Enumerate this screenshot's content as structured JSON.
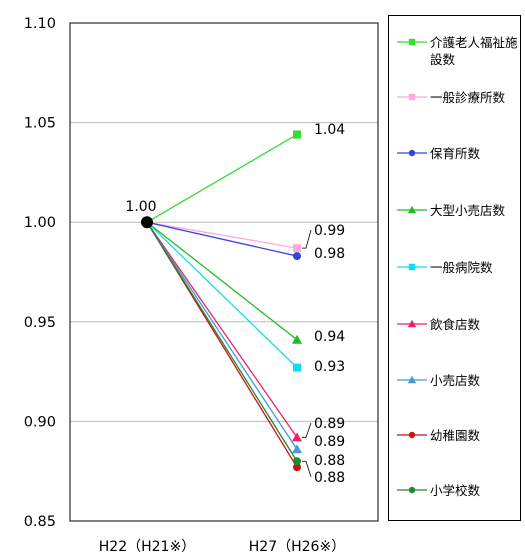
{
  "chart_data": {
    "type": "line",
    "x": [
      "H22（H21※）",
      "H27（H26※）"
    ],
    "ylim": [
      0.85,
      1.1
    ],
    "yticks": [
      "0.85",
      "0.90",
      "0.95",
      "1.00",
      "1.05",
      "1.10"
    ],
    "grid": true,
    "legend_position": "right",
    "start_label": "1.00",
    "series": [
      {
        "name": "介護老人福祉施設数",
        "values": [
          1.0,
          1.044
        ],
        "label": "1.04",
        "color": "#33dd33",
        "marker": "square"
      },
      {
        "name": "一般診療所数",
        "values": [
          1.0,
          0.987
        ],
        "label": "0.99",
        "color": "#ffaadd",
        "marker": "square"
      },
      {
        "name": "保育所数",
        "values": [
          1.0,
          0.983
        ],
        "label": "0.98",
        "color": "#3344dd",
        "marker": "circle"
      },
      {
        "name": "大型小売店数",
        "values": [
          1.0,
          0.941
        ],
        "label": "0.94",
        "color": "#22bb22",
        "marker": "triangle"
      },
      {
        "name": "一般病院数",
        "values": [
          1.0,
          0.927
        ],
        "label": "0.93",
        "color": "#11ddee",
        "marker": "square"
      },
      {
        "name": "飲食店数",
        "values": [
          1.0,
          0.892
        ],
        "label": "0.89",
        "color": "#ee2266",
        "marker": "triangle"
      },
      {
        "name": "小売店数",
        "values": [
          1.0,
          0.886
        ],
        "label": "0.89",
        "color": "#4499dd",
        "marker": "triangle"
      },
      {
        "name": "幼稚園数",
        "values": [
          1.0,
          0.877
        ],
        "label": "0.88",
        "color": "#cc1111",
        "marker": "circle"
      },
      {
        "name": "小学校数",
        "values": [
          1.0,
          0.88
        ],
        "label": "0.88",
        "color": "#228833",
        "marker": "circle"
      }
    ]
  }
}
